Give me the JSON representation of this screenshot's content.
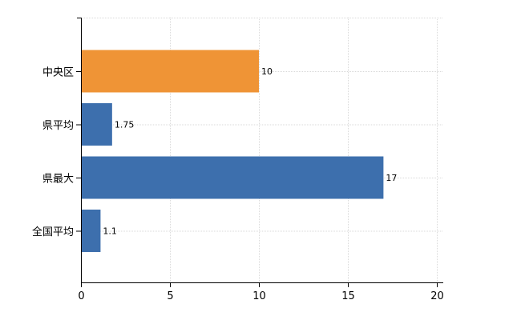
{
  "chart_data": {
    "type": "bar",
    "orientation": "horizontal",
    "categories": [
      "中央区",
      "県平均",
      "県最大",
      "全国平均"
    ],
    "values": [
      10,
      1.75,
      17,
      1.1
    ],
    "data_labels": [
      "10",
      "1.75",
      "17",
      "1.1"
    ],
    "bar_colors": [
      "#ef9436",
      "#3d6fad",
      "#3d6fad",
      "#3d6fad"
    ],
    "xlim": [
      0,
      20
    ],
    "x_ticks": [
      0,
      5,
      10,
      15,
      20
    ],
    "x_tick_labels": [
      "0",
      "5",
      "10",
      "15",
      "20"
    ],
    "title": "",
    "xlabel": "",
    "ylabel": "",
    "grid": true,
    "legend": false
  }
}
